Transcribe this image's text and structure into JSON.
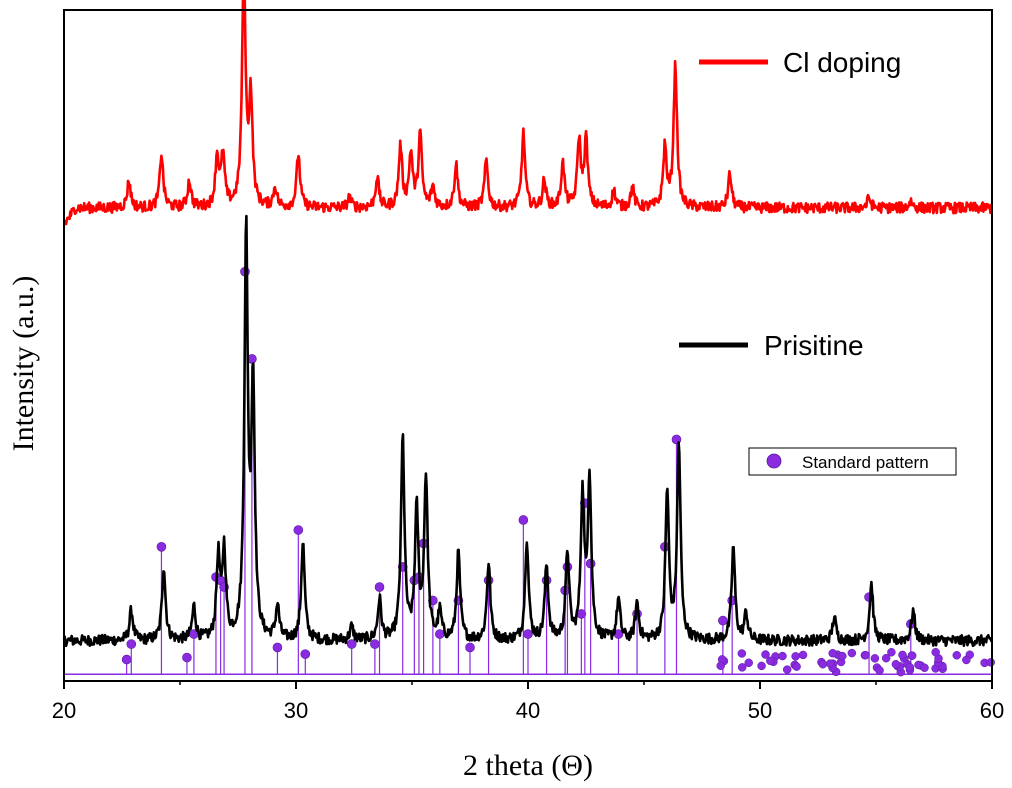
{
  "chart_data": {
    "type": "line",
    "xlabel": "2 theta (Θ)",
    "ylabel": "Intensity (a.u.)",
    "xlim": [
      20,
      60
    ],
    "ylim": [
      0,
      100
    ],
    "xticks": [
      20,
      30,
      40,
      50,
      60
    ],
    "y_tick_labels": "none",
    "grid": false,
    "legend_entries": [
      {
        "label": "Cl doping",
        "marker": "line",
        "color": "#ff0000",
        "placement": "top-right"
      },
      {
        "label": "Prisitine",
        "marker": "line",
        "color": "#000000",
        "placement": "middle-right"
      },
      {
        "label": "Standard pattern",
        "marker": "sphere",
        "color": "#8a2be2",
        "placement": "right, boxed"
      }
    ],
    "series": [
      {
        "name": "Cl doping",
        "color": "#ff0000",
        "baseline": 70.5,
        "peaks": [
          [
            22.8,
            4
          ],
          [
            24.2,
            8
          ],
          [
            25.4,
            4
          ],
          [
            26.6,
            7.5
          ],
          [
            26.85,
            7.5
          ],
          [
            27.75,
            35
          ],
          [
            28.05,
            16
          ],
          [
            29.1,
            3
          ],
          [
            30.1,
            8
          ],
          [
            32.3,
            1.5
          ],
          [
            33.5,
            4.5
          ],
          [
            34.5,
            9
          ],
          [
            34.95,
            8
          ],
          [
            35.35,
            11
          ],
          [
            35.9,
            3
          ],
          [
            36.9,
            6.5
          ],
          [
            38.2,
            7
          ],
          [
            39.8,
            11
          ],
          [
            40.7,
            4
          ],
          [
            41.5,
            6.5
          ],
          [
            42.2,
            10
          ],
          [
            42.5,
            10
          ],
          [
            43.7,
            2.5
          ],
          [
            44.5,
            3
          ],
          [
            45.9,
            9
          ],
          [
            46.35,
            21
          ],
          [
            48.7,
            5
          ],
          [
            54.7,
            1.5
          ],
          [
            56.5,
            1
          ]
        ]
      },
      {
        "name": "Prisitine",
        "color": "#000000",
        "baseline": 6,
        "peaks": [
          [
            22.9,
            4.5
          ],
          [
            24.3,
            11
          ],
          [
            25.6,
            5
          ],
          [
            26.65,
            12
          ],
          [
            26.9,
            13
          ],
          [
            27.85,
            60
          ],
          [
            28.15,
            37
          ],
          [
            29.2,
            5
          ],
          [
            30.3,
            14.5
          ],
          [
            32.4,
            2
          ],
          [
            33.6,
            6
          ],
          [
            34.6,
            30
          ],
          [
            35.2,
            19
          ],
          [
            35.6,
            24
          ],
          [
            36.2,
            4
          ],
          [
            37.0,
            13
          ],
          [
            38.3,
            11.5
          ],
          [
            39.95,
            15
          ],
          [
            40.8,
            11
          ],
          [
            41.7,
            13
          ],
          [
            42.35,
            21
          ],
          [
            42.65,
            24
          ],
          [
            43.9,
            6
          ],
          [
            44.7,
            5.5
          ],
          [
            46.0,
            22
          ],
          [
            46.5,
            29
          ],
          [
            48.85,
            14
          ],
          [
            49.4,
            4
          ],
          [
            53.2,
            3.5
          ],
          [
            54.8,
            8.5
          ],
          [
            56.6,
            4.5
          ]
        ]
      },
      {
        "name": "Standard pattern",
        "color": "#8a2be2",
        "style": "sticks",
        "sticks": [
          [
            22.7,
            2.2
          ],
          [
            22.9,
            4.5
          ],
          [
            24.2,
            19
          ],
          [
            25.3,
            2.5
          ],
          [
            25.6,
            6
          ],
          [
            26.55,
            14.5
          ],
          [
            26.75,
            14
          ],
          [
            26.9,
            13
          ],
          [
            27.8,
            60
          ],
          [
            28.1,
            47
          ],
          [
            29.2,
            4
          ],
          [
            30.1,
            21.5
          ],
          [
            30.4,
            3
          ],
          [
            32.4,
            4.5
          ],
          [
            33.4,
            4.5
          ],
          [
            33.6,
            13
          ],
          [
            34.6,
            16
          ],
          [
            35.1,
            14
          ],
          [
            35.3,
            14.5
          ],
          [
            35.5,
            19.5
          ],
          [
            35.9,
            11
          ],
          [
            36.2,
            6
          ],
          [
            37.0,
            11
          ],
          [
            37.5,
            4
          ],
          [
            38.3,
            14
          ],
          [
            39.8,
            23
          ],
          [
            40.0,
            6
          ],
          [
            40.8,
            14
          ],
          [
            41.6,
            12.5
          ],
          [
            41.7,
            16
          ],
          [
            42.3,
            9
          ],
          [
            42.45,
            25.5
          ],
          [
            42.7,
            16.5
          ],
          [
            43.9,
            6
          ],
          [
            44.7,
            9
          ],
          [
            45.9,
            19
          ],
          [
            46.4,
            35
          ],
          [
            48.4,
            8
          ],
          [
            48.8,
            11
          ],
          [
            54.7,
            11.5
          ],
          [
            56.5,
            7.5
          ]
        ]
      }
    ]
  }
}
